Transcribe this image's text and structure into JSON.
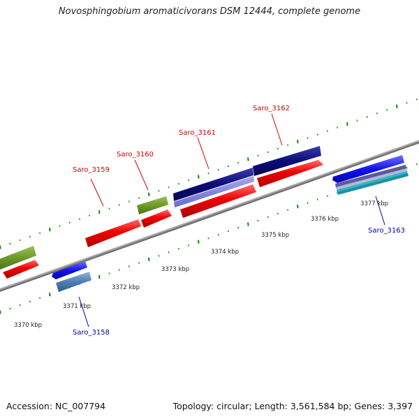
{
  "title": "Novosphingobium aromaticivorans DSM 12444, complete genome",
  "footer": {
    "accession": "Accession: NC_007794",
    "info": "Topology: circular; Length: 3,561,584 bp; Genes: 3,397"
  },
  "colors": {
    "backbone": "#8a8a8a",
    "forward_ruler": "#0a8a0a",
    "reverse_ruler": "#0a8a0a",
    "label_forward": "#cc0000",
    "label_reverse": "#0000aa"
  },
  "ticks": [
    "3370 kbp",
    "3371 kbp",
    "3372 kbp",
    "3373 kbp",
    "3374 kbp",
    "3375 kbp",
    "3376 kbp",
    "3377 kbp"
  ],
  "gene_labels": {
    "saro_3158": "Saro_3158",
    "saro_3159": "Saro_3159",
    "saro_3160": "Saro_3160",
    "saro_3161": "Saro_3161",
    "saro_3162": "Saro_3162",
    "saro_3163": "Saro_3163"
  }
}
